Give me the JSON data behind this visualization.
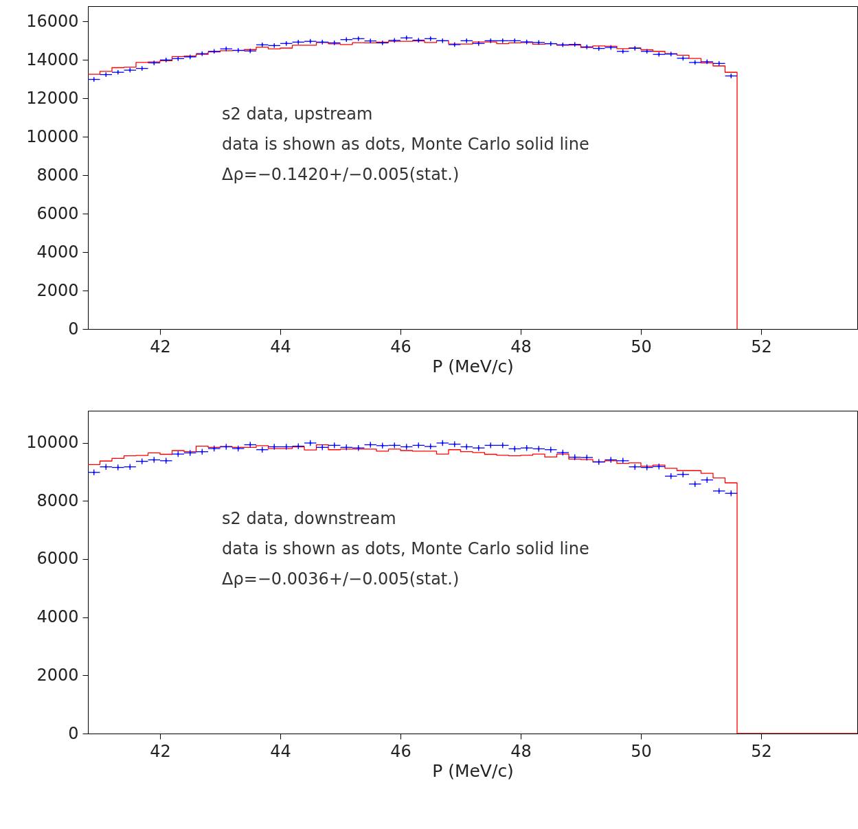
{
  "chart_data": [
    {
      "type": "step",
      "xlabel": "P (MeV/c)",
      "xlim": [
        40.8,
        53.6
      ],
      "xticks": [
        42,
        44,
        46,
        48,
        50,
        52
      ],
      "ylim": [
        0,
        16800
      ],
      "yticks": [
        0,
        2000,
        4000,
        6000,
        8000,
        10000,
        12000,
        14000,
        16000
      ],
      "grid": false,
      "annotations": [
        "s2 data, upstream",
        "data is shown as dots, Monte Carlo solid line",
        "Δρ=−0.1420+/−0.005(stat.)"
      ],
      "series": [
        {
          "color": "#ff0000",
          "line_style": "solid",
          "x": [
            40.8,
            41.0,
            41.2,
            41.4,
            41.6,
            41.8,
            42.0,
            42.2,
            42.4,
            42.6,
            42.8,
            43.0,
            43.2,
            43.4,
            43.6,
            43.8,
            44.0,
            44.2,
            44.4,
            44.6,
            44.8,
            45.0,
            45.2,
            45.4,
            45.6,
            45.8,
            46.0,
            46.2,
            46.4,
            46.6,
            46.8,
            47.0,
            47.2,
            47.4,
            47.6,
            47.8,
            48.0,
            48.2,
            48.4,
            48.6,
            48.8,
            49.0,
            49.2,
            49.4,
            49.6,
            49.8,
            50.0,
            50.2,
            50.4,
            50.6,
            50.8,
            51.0,
            51.2,
            51.4,
            51.6
          ],
          "values": [
            13260,
            13410,
            13600,
            13620,
            13870,
            13900,
            13960,
            14180,
            14200,
            14290,
            14420,
            14480,
            14490,
            14540,
            14670,
            14580,
            14620,
            14770,
            14770,
            14910,
            14840,
            14800,
            14900,
            14890,
            14930,
            14970,
            14970,
            14990,
            14910,
            15000,
            14830,
            14830,
            14940,
            14940,
            14850,
            14890,
            14910,
            14820,
            14850,
            14770,
            14780,
            14650,
            14730,
            14710,
            14590,
            14620,
            14530,
            14450,
            14330,
            14250,
            14080,
            13850,
            13690,
            13360,
            0
          ]
        },
        {
          "type": "scatter",
          "color": "#0000ff",
          "marker": "cross",
          "x": [
            40.9,
            41.1,
            41.3,
            41.5,
            41.7,
            41.9,
            42.1,
            42.3,
            42.5,
            42.7,
            42.9,
            43.1,
            43.3,
            43.5,
            43.7,
            43.9,
            44.1,
            44.3,
            44.5,
            44.7,
            44.9,
            45.1,
            45.3,
            45.5,
            45.7,
            45.9,
            46.1,
            46.3,
            46.5,
            46.7,
            46.9,
            47.1,
            47.3,
            47.5,
            47.7,
            47.9,
            48.1,
            48.3,
            48.5,
            48.7,
            48.9,
            49.1,
            49.3,
            49.5,
            49.7,
            49.9,
            50.1,
            50.3,
            50.5,
            50.7,
            50.9,
            51.1,
            51.3,
            51.5
          ],
          "values": [
            12990,
            13240,
            13360,
            13470,
            13560,
            13850,
            14000,
            14070,
            14160,
            14330,
            14450,
            14580,
            14500,
            14470,
            14790,
            14750,
            14860,
            14930,
            14970,
            14930,
            14890,
            15060,
            15110,
            14990,
            14890,
            15020,
            15150,
            15030,
            15110,
            15000,
            14800,
            15000,
            14860,
            15000,
            15000,
            15000,
            14940,
            14910,
            14850,
            14790,
            14810,
            14680,
            14600,
            14650,
            14450,
            14610,
            14450,
            14290,
            14310,
            14090,
            13870,
            13910,
            13820,
            13170
          ],
          "errors": [
            120,
            120,
            120,
            120,
            120,
            120,
            120,
            120,
            120,
            120,
            120,
            120,
            120,
            120,
            120,
            120,
            120,
            120,
            120,
            120,
            120,
            120,
            120,
            120,
            120,
            120,
            120,
            120,
            120,
            120,
            120,
            120,
            120,
            120,
            120,
            120,
            120,
            120,
            120,
            120,
            120,
            120,
            120,
            120,
            120,
            120,
            120,
            120,
            120,
            120,
            120,
            120,
            120,
            120
          ],
          "xerrors": [
            0.1,
            0.1,
            0.1,
            0.1,
            0.1,
            0.1,
            0.1,
            0.1,
            0.1,
            0.1,
            0.1,
            0.1,
            0.1,
            0.1,
            0.1,
            0.1,
            0.1,
            0.1,
            0.1,
            0.1,
            0.1,
            0.1,
            0.1,
            0.1,
            0.1,
            0.1,
            0.1,
            0.1,
            0.1,
            0.1,
            0.1,
            0.1,
            0.1,
            0.1,
            0.1,
            0.1,
            0.1,
            0.1,
            0.1,
            0.1,
            0.1,
            0.1,
            0.1,
            0.1,
            0.1,
            0.1,
            0.1,
            0.1,
            0.1,
            0.1,
            0.1,
            0.1,
            0.1,
            0.1
          ]
        }
      ]
    },
    {
      "type": "step",
      "xlabel": "P (MeV/c)",
      "xlim": [
        40.8,
        53.6
      ],
      "xticks": [
        42,
        44,
        46,
        48,
        50,
        52
      ],
      "ylim": [
        0,
        11100
      ],
      "yticks": [
        0,
        2000,
        4000,
        6000,
        8000,
        10000
      ],
      "grid": false,
      "annotations": [
        "s2 data, downstream",
        "data is shown as dots, Monte Carlo solid line",
        "Δρ=−0.0036+/−0.005(stat.)"
      ],
      "series": [
        {
          "color": "#ff0000",
          "line_style": "solid",
          "x": [
            40.8,
            41.0,
            41.2,
            41.4,
            41.6,
            41.8,
            42.0,
            42.2,
            42.4,
            42.6,
            42.8,
            43.0,
            43.2,
            43.4,
            43.6,
            43.8,
            44.0,
            44.2,
            44.4,
            44.6,
            44.8,
            45.0,
            45.2,
            45.4,
            45.6,
            45.8,
            46.0,
            46.2,
            46.4,
            46.6,
            46.8,
            47.0,
            47.2,
            47.4,
            47.6,
            47.8,
            48.0,
            48.2,
            48.4,
            48.6,
            48.8,
            49.0,
            49.2,
            49.4,
            49.6,
            49.8,
            50.0,
            50.2,
            50.4,
            50.6,
            50.8,
            51.0,
            51.2,
            51.4,
            51.6,
            53.6
          ],
          "values": [
            9250,
            9370,
            9460,
            9550,
            9560,
            9650,
            9600,
            9730,
            9690,
            9880,
            9840,
            9870,
            9840,
            9840,
            9900,
            9800,
            9800,
            9860,
            9750,
            9930,
            9760,
            9780,
            9780,
            9780,
            9710,
            9780,
            9730,
            9710,
            9710,
            9610,
            9760,
            9690,
            9660,
            9600,
            9570,
            9550,
            9570,
            9610,
            9510,
            9610,
            9440,
            9420,
            9340,
            9380,
            9290,
            9310,
            9190,
            9230,
            9120,
            9040,
            9040,
            8950,
            8790,
            8620,
            0,
            0
          ]
        },
        {
          "type": "scatter",
          "color": "#0000ff",
          "marker": "cross",
          "x": [
            40.9,
            41.1,
            41.3,
            41.5,
            41.7,
            41.9,
            42.1,
            42.3,
            42.5,
            42.7,
            42.9,
            43.1,
            43.3,
            43.5,
            43.7,
            43.9,
            44.1,
            44.3,
            44.5,
            44.7,
            44.9,
            45.1,
            45.3,
            45.5,
            45.7,
            45.9,
            46.1,
            46.3,
            46.5,
            46.7,
            46.9,
            47.1,
            47.3,
            47.5,
            47.7,
            47.9,
            48.1,
            48.3,
            48.5,
            48.7,
            48.9,
            49.1,
            49.3,
            49.5,
            49.7,
            49.9,
            50.1,
            50.3,
            50.5,
            50.7,
            50.9,
            51.1,
            51.3,
            51.5
          ],
          "values": [
            8980,
            9170,
            9150,
            9170,
            9360,
            9410,
            9380,
            9610,
            9650,
            9690,
            9800,
            9860,
            9800,
            9930,
            9760,
            9860,
            9860,
            9880,
            9990,
            9840,
            9910,
            9840,
            9820,
            9930,
            9900,
            9910,
            9860,
            9910,
            9870,
            9990,
            9950,
            9860,
            9820,
            9910,
            9910,
            9790,
            9820,
            9790,
            9760,
            9660,
            9500,
            9490,
            9340,
            9410,
            9380,
            9170,
            9150,
            9180,
            8850,
            8910,
            8580,
            8720,
            8340,
            8260
          ],
          "errors": [
            100,
            100,
            100,
            100,
            100,
            100,
            100,
            100,
            100,
            100,
            100,
            100,
            100,
            100,
            100,
            100,
            100,
            100,
            100,
            100,
            100,
            100,
            100,
            100,
            100,
            100,
            100,
            100,
            100,
            100,
            100,
            100,
            100,
            100,
            100,
            100,
            100,
            100,
            100,
            100,
            100,
            100,
            100,
            100,
            100,
            100,
            100,
            100,
            100,
            100,
            100,
            100,
            100,
            100
          ],
          "xerrors": [
            0.1,
            0.1,
            0.1,
            0.1,
            0.1,
            0.1,
            0.1,
            0.1,
            0.1,
            0.1,
            0.1,
            0.1,
            0.1,
            0.1,
            0.1,
            0.1,
            0.1,
            0.1,
            0.1,
            0.1,
            0.1,
            0.1,
            0.1,
            0.1,
            0.1,
            0.1,
            0.1,
            0.1,
            0.1,
            0.1,
            0.1,
            0.1,
            0.1,
            0.1,
            0.1,
            0.1,
            0.1,
            0.1,
            0.1,
            0.1,
            0.1,
            0.1,
            0.1,
            0.1,
            0.1,
            0.1,
            0.1,
            0.1,
            0.1,
            0.1,
            0.1,
            0.1,
            0.1,
            0.1
          ]
        }
      ]
    }
  ]
}
